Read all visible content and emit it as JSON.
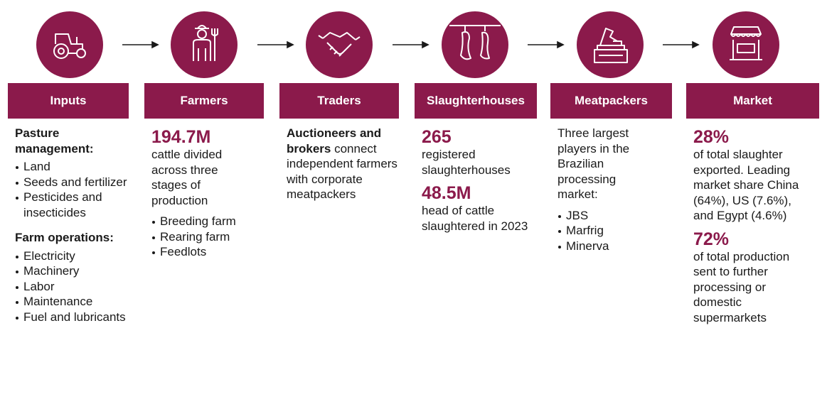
{
  "columns": [
    {
      "header": "Inputs",
      "blocks": [
        {
          "heading": "Pasture management:"
        },
        {
          "bullets": [
            "Land",
            "Seeds and fertilizer",
            "Pesticides and insecticides"
          ]
        },
        {
          "heading": "Farm operations:"
        },
        {
          "bullets": [
            "Electricity",
            "Machinery",
            "Labor",
            "Maintenance",
            "Fuel and lubricants"
          ]
        }
      ]
    },
    {
      "header": "Farmers",
      "blocks": [
        {
          "stat": "194.7M"
        },
        {
          "text": "cattle divided across three stages of production"
        },
        {
          "bullets": [
            "Breeding farm",
            "Rearing farm",
            "Feedlots"
          ]
        }
      ]
    },
    {
      "header": "Traders",
      "blocks": [
        {
          "bold": "Auctioneers and brokers",
          "text": " connect independent farmers with corporate meatpackers"
        }
      ]
    },
    {
      "header": "Slaughterhouses",
      "blocks": [
        {
          "stat": "265"
        },
        {
          "text": "registered slaughterhouses"
        },
        {
          "stat": "48.5M"
        },
        {
          "text": "head of cattle slaughtered in 2023"
        }
      ]
    },
    {
      "header": "Meatpackers",
      "blocks": [
        {
          "text": "Three largest players in the Brazilian processing market:"
        },
        {
          "bullets": [
            "JBS",
            "Marfrig",
            "Minerva"
          ]
        }
      ]
    },
    {
      "header": "Market",
      "blocks": [
        {
          "stat": "28%"
        },
        {
          "text": "of total slaughter exported. Leading market share China (64%), US (7.6%), and Egypt (4.6%)"
        },
        {
          "stat": "72%"
        },
        {
          "text": "of total production sent to further processing or domestic supermarkets"
        }
      ]
    }
  ]
}
